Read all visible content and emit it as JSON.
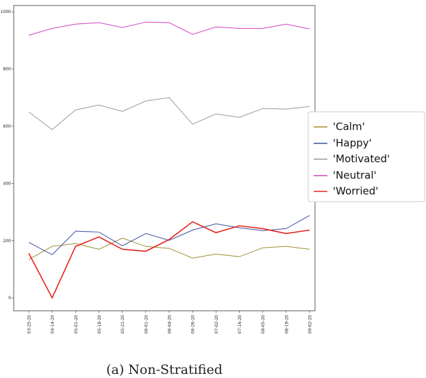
{
  "chart_data": {
    "type": "line",
    "caption": "(a) Non-Stratified",
    "categories": [
      "03-25-20",
      "04-14-20",
      "05-01-20",
      "05-18-20",
      "05-21-20",
      "06-01-20",
      "06-04-20",
      "06-26-20",
      "07-02-20",
      "07-16-20",
      "08-05-20",
      "08-19-20",
      "09-02-20"
    ],
    "series": [
      {
        "name": "'Calm'",
        "color": "#a08c30",
        "values": [
          134,
          180,
          190,
          170,
          209,
          180,
          173,
          139,
          153,
          144,
          175,
          180,
          170
        ]
      },
      {
        "name": "'Happy'",
        "color": "#3a4ea0",
        "values": [
          194,
          151,
          233,
          230,
          182,
          225,
          201,
          237,
          259,
          245,
          235,
          242,
          288
        ]
      },
      {
        "name": "'Motivated'",
        "color": "#999999",
        "values": [
          650,
          588,
          657,
          674,
          652,
          688,
          700,
          607,
          643,
          631,
          662,
          660,
          669
        ]
      },
      {
        "name": "'Neutral'",
        "color": "#d040c0",
        "values": [
          918,
          942,
          957,
          962,
          945,
          964,
          962,
          921,
          947,
          942,
          942,
          957,
          940
        ]
      },
      {
        "name": "'Worried'",
        "color": "#e8201a",
        "values": [
          156,
          0,
          180,
          213,
          170,
          163,
          204,
          266,
          228,
          252,
          242,
          225,
          237
        ]
      }
    ],
    "ylim": [
      -45,
      1022
    ],
    "yticks": [
      0,
      200,
      400,
      600,
      800,
      1000
    ],
    "legend": "right"
  }
}
